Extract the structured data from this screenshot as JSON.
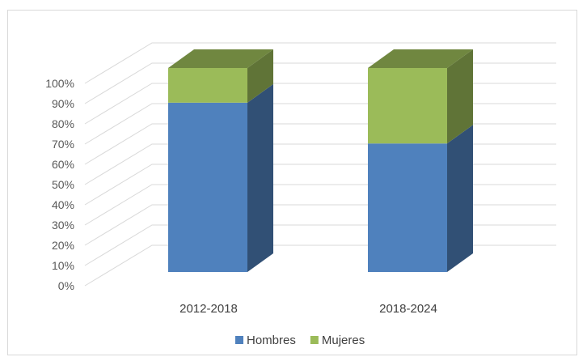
{
  "chart_data": {
    "type": "bar",
    "subtype": "stacked-100-3d",
    "title": "",
    "xlabel": "",
    "ylabel": "",
    "categories": [
      "2012-2018",
      "2018-2024"
    ],
    "series": [
      {
        "name": "Hombres",
        "values": [
          83,
          63
        ],
        "color": "#4f81bd"
      },
      {
        "name": "Mujeres",
        "values": [
          17,
          37
        ],
        "color": "#9bbb59"
      }
    ],
    "ylim": [
      0,
      100
    ],
    "yticks": [
      "0%",
      "10%",
      "20%",
      "30%",
      "40%",
      "50%",
      "60%",
      "70%",
      "80%",
      "90%",
      "100%"
    ],
    "grid": true,
    "legend_position": "bottom"
  }
}
